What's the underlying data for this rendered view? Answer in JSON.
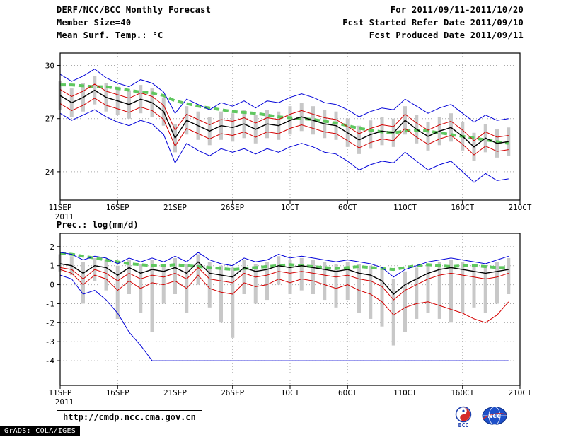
{
  "header": {
    "title": "DERF/NCC/BCC Monthly Forecast",
    "member_size": "Member Size=40",
    "variable1": "Mean Surf. Temp.: °C",
    "for_period": "For 2011/09/11-2011/10/20",
    "refer_date": "Fcst Started Refer Date 2011/09/10",
    "produced_date": "Fcst Produced Date 2011/09/11"
  },
  "footer": {
    "url": "http://cmdp.ncc.cma.gov.cn",
    "grads_credit": "GrADS: COLA/IGES",
    "bcc_logo_label": "BCC",
    "ncc_logo_label": "NCC"
  },
  "colors": {
    "ensemble_max_min": "#0000d8",
    "confidence_bounds": "#d40000",
    "ensemble_mean": "#000000",
    "climatology": "#5fc75f",
    "spread_bar": "#c8c8c8",
    "grid": "#aaaaaa",
    "frame": "#000000"
  },
  "chart_data": [
    {
      "type": "line",
      "title": "Mean Surf. Temp.: °C",
      "xlabel": "",
      "ylabel": "",
      "ylim": [
        22.4,
        30.7
      ],
      "yticks": [
        24,
        27,
        30
      ],
      "x_tick_labels": [
        "11SEP",
        "16SEP",
        "21SEP",
        "26SEP",
        "1OCT",
        "6OCT",
        "11OCT",
        "16OCT",
        "21OCT"
      ],
      "x_tick_days": [
        0,
        5,
        10,
        15,
        20,
        25,
        30,
        35,
        40
      ],
      "x_range_days": 40,
      "year_label": "2011",
      "grid": "dotted",
      "legend_position": "none",
      "bars": {
        "name": "ensemble-spread",
        "color": "#c8c8c8",
        "high": [
          29.1,
          28.7,
          29.0,
          29.4,
          29.0,
          28.8,
          28.6,
          28.9,
          28.7,
          28.2,
          26.7,
          27.7,
          27.4,
          27.1,
          27.4,
          27.3,
          27.5,
          27.2,
          27.5,
          27.4,
          27.7,
          27.9,
          27.7,
          27.5,
          27.4,
          27.0,
          26.6,
          26.9,
          27.1,
          27.0,
          27.7,
          27.2,
          26.8,
          27.1,
          27.3,
          26.8,
          26.2,
          26.7,
          26.4,
          26.5
        ],
        "low": [
          27.5,
          27.1,
          27.4,
          27.8,
          27.4,
          27.2,
          27.0,
          27.3,
          27.1,
          26.6,
          25.1,
          26.1,
          25.8,
          25.5,
          25.8,
          25.7,
          25.9,
          25.6,
          25.9,
          25.8,
          26.1,
          26.3,
          26.1,
          25.9,
          25.8,
          25.4,
          25.0,
          25.3,
          25.5,
          25.4,
          26.1,
          25.6,
          25.2,
          25.5,
          25.7,
          25.2,
          24.6,
          25.1,
          24.8,
          24.9
        ]
      },
      "series": [
        {
          "name": "climatology",
          "color": "#5fc75f",
          "style": "dashed",
          "width": 4,
          "values": [
            28.9,
            28.9,
            28.85,
            28.8,
            28.8,
            28.7,
            28.6,
            28.5,
            28.45,
            28.3,
            28.0,
            27.85,
            27.7,
            27.6,
            27.5,
            27.4,
            27.35,
            27.3,
            27.2,
            27.1,
            27.05,
            27.0,
            26.95,
            26.85,
            26.75,
            26.6,
            26.45,
            26.35,
            26.25,
            26.2,
            26.3,
            26.35,
            26.3,
            26.2,
            26.1,
            26.0,
            25.9,
            25.8,
            25.7,
            25.6
          ]
        },
        {
          "name": "ensemble-max",
          "color": "#0000d8",
          "style": "solid",
          "width": 1,
          "values": [
            29.5,
            29.1,
            29.4,
            29.8,
            29.3,
            29.0,
            28.8,
            29.2,
            29.0,
            28.5,
            27.3,
            28.1,
            27.8,
            27.5,
            27.9,
            27.7,
            28.0,
            27.6,
            28.0,
            27.9,
            28.2,
            28.4,
            28.2,
            27.9,
            27.8,
            27.5,
            27.1,
            27.4,
            27.6,
            27.5,
            28.1,
            27.7,
            27.3,
            27.6,
            27.8,
            27.3,
            26.8,
            27.2,
            26.9,
            27.0
          ]
        },
        {
          "name": "ensemble-min",
          "color": "#0000d8",
          "style": "solid",
          "width": 1,
          "values": [
            27.3,
            26.9,
            27.2,
            27.5,
            27.1,
            26.8,
            26.6,
            26.9,
            26.7,
            26.1,
            24.5,
            25.6,
            25.2,
            24.9,
            25.3,
            25.1,
            25.3,
            25.0,
            25.3,
            25.1,
            25.4,
            25.6,
            25.4,
            25.1,
            25.0,
            24.6,
            24.1,
            24.4,
            24.6,
            24.5,
            25.1,
            24.6,
            24.1,
            24.4,
            24.6,
            24.0,
            23.4,
            23.9,
            23.5,
            23.6
          ]
        },
        {
          "name": "upper-bound",
          "color": "#d40000",
          "style": "solid",
          "width": 1,
          "values": [
            28.65,
            28.25,
            28.55,
            28.95,
            28.55,
            28.35,
            28.15,
            28.45,
            28.25,
            27.75,
            26.35,
            27.25,
            26.95,
            26.65,
            26.95,
            26.85,
            27.05,
            26.75,
            27.05,
            26.95,
            27.25,
            27.45,
            27.25,
            27.05,
            26.95,
            26.55,
            26.15,
            26.45,
            26.65,
            26.55,
            27.25,
            26.75,
            26.35,
            26.65,
            26.85,
            26.35,
            25.75,
            26.25,
            25.95,
            26.05
          ]
        },
        {
          "name": "lower-bound",
          "color": "#d40000",
          "style": "solid",
          "width": 1,
          "values": [
            27.85,
            27.45,
            27.75,
            28.15,
            27.75,
            27.55,
            27.35,
            27.65,
            27.45,
            26.95,
            25.45,
            26.45,
            26.15,
            25.85,
            26.15,
            26.05,
            26.25,
            25.95,
            26.25,
            26.15,
            26.45,
            26.65,
            26.45,
            26.25,
            26.15,
            25.75,
            25.35,
            25.65,
            25.85,
            25.75,
            26.45,
            25.95,
            25.55,
            25.85,
            26.05,
            25.55,
            24.95,
            25.45,
            25.15,
            25.25
          ]
        },
        {
          "name": "ensemble-mean",
          "color": "#000000",
          "style": "solid",
          "width": 1.4,
          "values": [
            28.3,
            27.9,
            28.2,
            28.6,
            28.2,
            28.0,
            27.8,
            28.1,
            27.9,
            27.4,
            25.9,
            26.9,
            26.6,
            26.3,
            26.6,
            26.5,
            26.7,
            26.4,
            26.7,
            26.6,
            26.9,
            27.1,
            26.9,
            26.7,
            26.6,
            26.2,
            25.8,
            26.1,
            26.3,
            26.2,
            26.9,
            26.4,
            26.0,
            26.3,
            26.5,
            26.0,
            25.4,
            25.9,
            25.6,
            25.7
          ]
        }
      ]
    },
    {
      "type": "line",
      "title": "Prec.: log(mm/d)",
      "xlabel": "",
      "ylabel": "",
      "ylim": [
        -5.3,
        2.7
      ],
      "yticks": [
        -4,
        -3,
        -2,
        -1,
        0,
        1,
        2
      ],
      "x_tick_labels": [
        "11SEP",
        "16SEP",
        "21SEP",
        "26SEP",
        "1OCT",
        "6OCT",
        "11OCT",
        "16OCT",
        "21OCT"
      ],
      "x_tick_days": [
        0,
        5,
        10,
        15,
        20,
        25,
        30,
        35,
        40
      ],
      "x_range_days": 40,
      "year_label": "2011",
      "grid": "dotted",
      "legend_position": "none",
      "bars": {
        "name": "ensemble-spread",
        "color": "#c8c8c8",
        "high": [
          1.6,
          1.5,
          1.2,
          1.4,
          1.3,
          1.0,
          1.3,
          1.1,
          1.3,
          1.1,
          1.4,
          1.1,
          1.6,
          1.2,
          1.0,
          0.9,
          1.3,
          1.1,
          1.2,
          1.5,
          1.3,
          1.4,
          1.3,
          1.2,
          1.1,
          1.2,
          1.1,
          1.0,
          0.8,
          0.3,
          0.7,
          0.9,
          1.1,
          1.2,
          1.3,
          1.2,
          1.1,
          1.0,
          1.2,
          1.4
        ],
        "low": [
          0.7,
          0.5,
          -1.0,
          0.2,
          -0.3,
          -1.8,
          -0.5,
          -1.5,
          -2.5,
          -1.0,
          -0.5,
          -1.5,
          0.0,
          -1.2,
          -2.0,
          -2.8,
          -0.5,
          -1.0,
          -0.8,
          0.0,
          -0.5,
          -0.3,
          -0.5,
          -0.8,
          -1.2,
          -0.8,
          -1.5,
          -1.8,
          -2.2,
          -3.2,
          -2.5,
          -1.8,
          -1.5,
          -1.8,
          -2.0,
          -1.5,
          -1.2,
          -1.5,
          -1.0,
          -0.5
        ]
      },
      "series": [
        {
          "name": "climatology",
          "color": "#5fc75f",
          "style": "dashed",
          "width": 4,
          "values": [
            1.65,
            1.6,
            1.5,
            1.4,
            1.3,
            1.2,
            1.1,
            1.05,
            1.0,
            1.0,
            1.05,
            1.0,
            0.95,
            0.9,
            0.85,
            0.8,
            0.85,
            0.9,
            0.95,
            1.0,
            1.05,
            1.0,
            0.95,
            0.9,
            0.85,
            0.9,
            0.95,
            0.9,
            0.85,
            0.8,
            0.9,
            1.0,
            1.05,
            1.0,
            0.95,
            1.0,
            1.0,
            0.95,
            0.9,
            0.9
          ]
        },
        {
          "name": "ensemble-max",
          "color": "#0000d8",
          "style": "solid",
          "width": 1,
          "values": [
            1.7,
            1.6,
            1.3,
            1.5,
            1.4,
            1.1,
            1.4,
            1.2,
            1.4,
            1.2,
            1.5,
            1.2,
            1.7,
            1.3,
            1.1,
            1.0,
            1.4,
            1.2,
            1.3,
            1.6,
            1.4,
            1.5,
            1.4,
            1.3,
            1.2,
            1.3,
            1.2,
            1.1,
            0.9,
            0.4,
            0.8,
            1.0,
            1.2,
            1.3,
            1.4,
            1.3,
            1.2,
            1.1,
            1.3,
            1.5
          ]
        },
        {
          "name": "ensemble-min",
          "color": "#0000d8",
          "style": "solid",
          "width": 1,
          "values": [
            0.5,
            0.3,
            -0.5,
            -0.3,
            -0.8,
            -1.5,
            -2.5,
            -3.2,
            -4.0,
            -4.0,
            -4.0,
            -4.0,
            -4.0,
            -4.0,
            -4.0,
            -4.0,
            -4.0,
            -4.0,
            -4.0,
            -4.0,
            -4.0,
            -4.0,
            -4.0,
            -4.0,
            -4.0,
            -4.0,
            -4.0,
            -4.0,
            -4.0,
            -4.0,
            -4.0,
            -4.0,
            -4.0,
            -4.0,
            -4.0,
            -4.0,
            -4.0,
            -4.0,
            -4.0,
            -4.0
          ]
        },
        {
          "name": "upper-bound",
          "color": "#d40000",
          "style": "solid",
          "width": 1,
          "values": [
            0.9,
            0.8,
            0.3,
            0.8,
            0.6,
            0.2,
            0.6,
            0.3,
            0.5,
            0.4,
            0.6,
            0.3,
            0.9,
            0.3,
            0.2,
            0.1,
            0.6,
            0.4,
            0.5,
            0.7,
            0.6,
            0.7,
            0.6,
            0.5,
            0.4,
            0.5,
            0.3,
            0.2,
            -0.1,
            -0.8,
            -0.3,
            0.0,
            0.3,
            0.5,
            0.6,
            0.5,
            0.4,
            0.3,
            0.4,
            0.6
          ]
        },
        {
          "name": "lower-bound",
          "color": "#d40000",
          "style": "solid",
          "width": 1,
          "values": [
            0.8,
            0.6,
            0.0,
            0.5,
            0.3,
            -0.3,
            0.2,
            -0.2,
            0.1,
            0.0,
            0.2,
            -0.2,
            0.5,
            -0.2,
            -0.4,
            -0.5,
            0.1,
            -0.1,
            0.0,
            0.3,
            0.1,
            0.3,
            0.2,
            0.0,
            -0.2,
            0.0,
            -0.3,
            -0.5,
            -0.9,
            -1.6,
            -1.2,
            -1.0,
            -0.9,
            -1.1,
            -1.3,
            -1.5,
            -1.8,
            -2.0,
            -1.6,
            -0.9
          ]
        },
        {
          "name": "ensemble-mean",
          "color": "#000000",
          "style": "solid",
          "width": 1.4,
          "values": [
            1.1,
            1.0,
            0.6,
            1.0,
            0.9,
            0.5,
            0.9,
            0.6,
            0.8,
            0.7,
            0.9,
            0.6,
            1.2,
            0.6,
            0.5,
            0.4,
            0.9,
            0.7,
            0.8,
            1.0,
            0.9,
            1.0,
            0.9,
            0.8,
            0.7,
            0.8,
            0.6,
            0.5,
            0.2,
            -0.5,
            0.0,
            0.3,
            0.6,
            0.8,
            0.9,
            0.8,
            0.7,
            0.6,
            0.7,
            0.8
          ]
        }
      ]
    }
  ]
}
